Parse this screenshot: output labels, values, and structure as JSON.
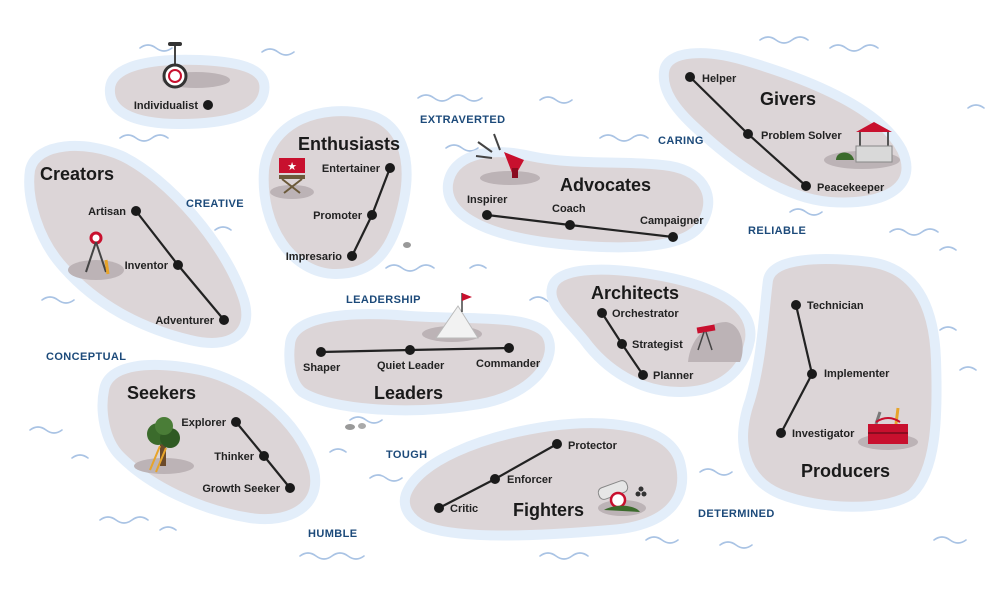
{
  "groups": {
    "individualist": {
      "nodes": [
        "Individualist"
      ]
    },
    "creators": {
      "title": "Creators",
      "nodes": [
        "Artisan",
        "Inventor",
        "Adventurer"
      ]
    },
    "enthusiasts": {
      "title": "Enthusiasts",
      "nodes": [
        "Entertainer",
        "Promoter",
        "Impresario"
      ]
    },
    "advocates": {
      "title": "Advocates",
      "nodes": [
        "Inspirer",
        "Coach",
        "Campaigner"
      ]
    },
    "givers": {
      "title": "Givers",
      "nodes": [
        "Helper",
        "Problem Solver",
        "Peacekeeper"
      ]
    },
    "leaders": {
      "title": "Leaders",
      "nodes": [
        "Shaper",
        "Quiet Leader",
        "Commander"
      ]
    },
    "architects": {
      "title": "Architects",
      "nodes": [
        "Orchestrator",
        "Strategist",
        "Planner"
      ]
    },
    "producers": {
      "title": "Producers",
      "nodes": [
        "Technician",
        "Implementer",
        "Investigator"
      ]
    },
    "seekers": {
      "title": "Seekers",
      "nodes": [
        "Explorer",
        "Thinker",
        "Growth Seeker"
      ]
    },
    "fighters": {
      "title": "Fighters",
      "nodes": [
        "Protector",
        "Enforcer",
        "Critic"
      ]
    }
  },
  "traits": {
    "extraverted": "EXTRAVERTED",
    "caring": "CARING",
    "creative": "CREATIVE",
    "reliable": "RELIABLE",
    "leadership": "LEADERSHIP",
    "conceptual": "CONCEPTUAL",
    "tough": "TOUGH",
    "humble": "HUMBLE",
    "determined": "DETERMINED"
  },
  "icons": [
    "unicycle-icon",
    "compass-icon",
    "directors-chair-icon",
    "megaphone-icon",
    "wishing-well-icon",
    "mountain-flag-icon",
    "telescope-icon",
    "toolbox-icon",
    "tree-ladder-icon",
    "cannon-icon"
  ]
}
